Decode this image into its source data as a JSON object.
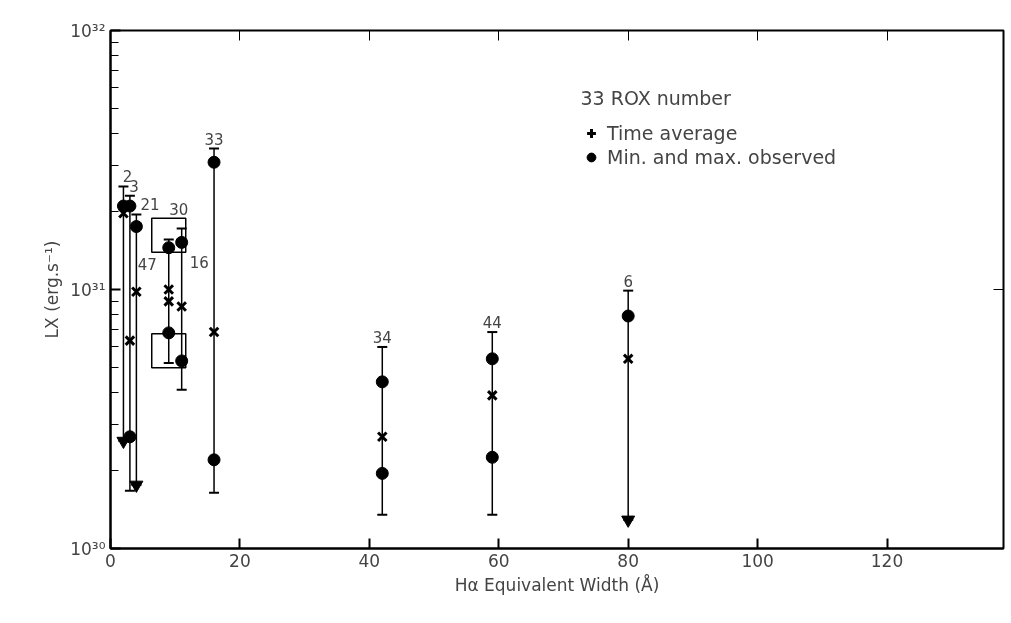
{
  "chart_data": {
    "type": "scatter",
    "xlabel": "Hα Equivalent Width (Å)",
    "ylabel": "LX (erg.s⁻¹)",
    "xlim": [
      0,
      138
    ],
    "xticks": [
      0,
      20,
      40,
      60,
      80,
      100,
      120
    ],
    "ylim": [
      1e+30,
      1e+32
    ],
    "yticks": [
      {
        "value": 1e+30,
        "label": "10³⁰"
      },
      {
        "value": 1e+31,
        "label": "10³¹"
      },
      {
        "value": 1e+32,
        "label": "10³²"
      }
    ],
    "log": true,
    "grid": false,
    "legend": "top right",
    "series": [
      {
        "name": "Time average",
        "marker": "cross",
        "color": "#000000",
        "x": [
          2,
          3,
          4,
          9,
          9,
          11,
          16,
          42,
          59,
          80
        ],
        "values": [
          1.97e+31,
          6.35e+30,
          9.8e+30,
          1e+31,
          9e+30,
          8.6e+30,
          6.85e+30,
          2.7e+30,
          3.9e+30,
          5.4e+30
        ]
      },
      {
        "name": "Min. and max. observed",
        "marker": "circle",
        "color": "#000000",
        "x": [
          2,
          3,
          3,
          4,
          9,
          9,
          11,
          11,
          16,
          16,
          42,
          42,
          59,
          59,
          80
        ],
        "values": [
          2.1e+31,
          2.1e+31,
          2.7e+30,
          1.75e+31,
          1.45e+31,
          6.8e+30,
          1.52e+31,
          5.3e+30,
          3.1e+31,
          2.2e+30,
          4.4e+30,
          1.95e+30,
          5.4e+30,
          2.25e+30,
          7.9e+30
        ],
        "errors": [
          [
            2.6e+30,
            2.5e+31
          ],
          [
            1.67e+30,
            2.3e+31
          ],
          null,
          [
            1.76e+30,
            1.95e+31
          ],
          [
            5.2e+30,
            1.56e+31
          ],
          null,
          [
            4.1e+30,
            1.72e+31
          ],
          null,
          [
            1.64e+30,
            3.5e+31
          ],
          null,
          [
            1.35e+30,
            6e+30
          ],
          null,
          [
            1.35e+30,
            6.85e+30
          ],
          null,
          [
            1.29e+30,
            9.9e+30
          ]
        ]
      },
      {
        "marker": "triangle",
        "color": "#000000",
        "x": [
          2,
          4,
          80
        ],
        "values": [
          2.6e+30,
          1.76e+30,
          1.29e+30
        ]
      },
      {
        "marker": "square",
        "color": "#000000",
        "x": [
          9,
          9
        ],
        "values": [
          1.62e+31,
          5.8e+30
        ]
      }
    ],
    "annotations": [
      {
        "text": "2",
        "x": 2,
        "y": 2.5e+31
      },
      {
        "text": "3",
        "x": 3,
        "y": 2.3e+31
      },
      {
        "text": "21",
        "x": 4,
        "y": 1.95e+31
      },
      {
        "text": "30",
        "x": 9,
        "y": 1.62e+31
      },
      {
        "text": "47",
        "x": 9,
        "y": 1.26e+31
      },
      {
        "text": "16",
        "x": 11,
        "y": 1.28e+31
      },
      {
        "text": "33",
        "x": 16,
        "y": 3.5e+31
      },
      {
        "text": "34",
        "x": 42,
        "y": 6e+30
      },
      {
        "text": "44",
        "x": 59,
        "y": 6.85e+30
      },
      {
        "text": "6",
        "x": 80,
        "y": 9.9e+30
      },
      "33 ROX number"
    ]
  }
}
